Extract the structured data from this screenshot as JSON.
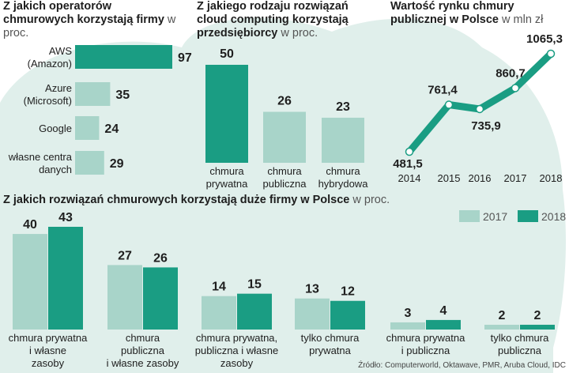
{
  "chart_data": [
    {
      "type": "bar",
      "orientation": "horizontal",
      "title": "Z jakich operatorów chmurowych korzystają firmy",
      "unit": "w proc.",
      "categories": [
        [
          "AWS",
          "(Amazon)"
        ],
        [
          "Azure",
          "(Microsoft)"
        ],
        [
          "Google"
        ],
        [
          "własne centra",
          "danych"
        ]
      ],
      "values": [
        97,
        35,
        24,
        29
      ],
      "highlight_index": 0,
      "xlim": [
        0,
        97
      ]
    },
    {
      "type": "bar",
      "title": "Z jakiego rodzaju rozwiązań cloud computing korzystają przedsiębiorcy",
      "unit": "w proc.",
      "categories": [
        [
          "chmura",
          "prywatna"
        ],
        [
          "chmura",
          "publiczna"
        ],
        [
          "chmura",
          "hybrydowa"
        ]
      ],
      "values": [
        50,
        26,
        23
      ],
      "highlight_index": 0,
      "ylim": [
        0,
        50
      ]
    },
    {
      "type": "line",
      "title": "Wartość rynku chmury publicznej w Polsce",
      "unit": "w mln zł",
      "x": [
        "2014",
        "2015",
        "2016",
        "2017",
        "2018"
      ],
      "values": [
        481.5,
        761.4,
        735.9,
        860.7,
        1065.3
      ],
      "labels": [
        "481,5",
        "761,4",
        "735,9",
        "860,7",
        "1065,3"
      ],
      "ylim": [
        481.5,
        1065.3
      ]
    },
    {
      "type": "bar",
      "title": "Z jakich rozwiązań chmurowych korzystają duże firmy w Polsce",
      "unit": "w proc.",
      "categories": [
        [
          "chmura prywatna",
          "i własne",
          "zasoby"
        ],
        [
          "chmura",
          "publiczna",
          "i własne zasoby"
        ],
        [
          "chmura prywatna,",
          "publiczna i własne",
          "zasoby"
        ],
        [
          "tylko chmura",
          "prywatna"
        ],
        [
          "chmura prywatna",
          "i publiczna"
        ],
        [
          "tylko chmura",
          "publiczna"
        ]
      ],
      "series": [
        {
          "name": "2017",
          "values": [
            40,
            27,
            14,
            13,
            3,
            2
          ]
        },
        {
          "name": "2018",
          "values": [
            43,
            26,
            15,
            12,
            4,
            2
          ]
        }
      ],
      "legend": "top-right",
      "ylim": [
        0,
        43
      ]
    }
  ],
  "source": "Źródło: Computerworld, Oktawave, PMR, Aruba Cloud, IDC",
  "colors": {
    "dark": "#1a9d83",
    "light": "#a8d4c9",
    "cloud": "#e0efeb",
    "text": "#1e1e1e"
  }
}
